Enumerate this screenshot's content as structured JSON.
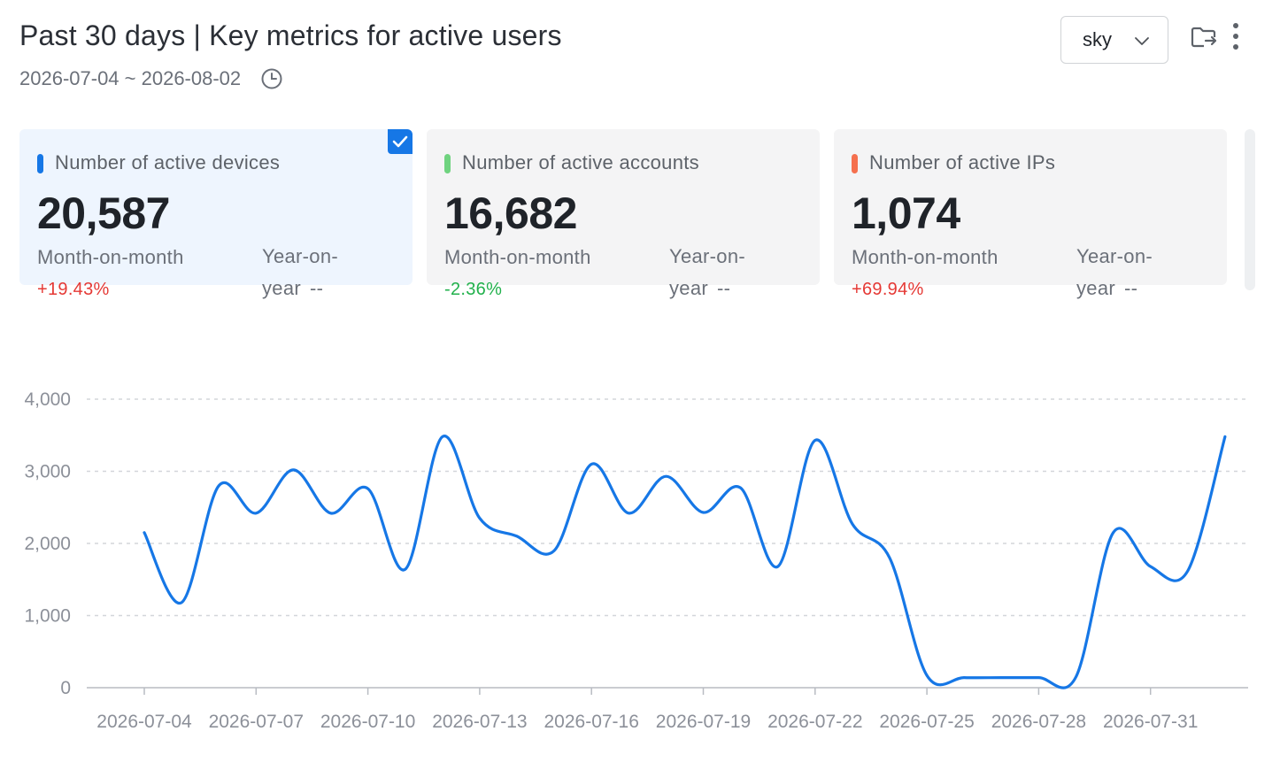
{
  "header": {
    "title": "Past 30 days | Key metrics for active users",
    "date_range": "2026-07-04 ~ 2026-08-02",
    "select_value": "sky"
  },
  "cards": [
    {
      "label": "Number of active devices",
      "value": "20,587",
      "mom_label": "Month-on-month",
      "mom_value": "+19.43%",
      "yoy_label": "Year-on-year",
      "yoy_value": "--",
      "marker_color": "#1677e6",
      "mom_color": "#e53935",
      "selected": true
    },
    {
      "label": "Number of active accounts",
      "value": "16,682",
      "mom_label": "Month-on-month",
      "mom_value": "-2.36%",
      "yoy_label": "Year-on-year",
      "yoy_value": "--",
      "marker_color": "#6fd37f",
      "mom_color": "#22b14c",
      "selected": false
    },
    {
      "label": "Number of active IPs",
      "value": "1,074",
      "mom_label": "Month-on-month",
      "mom_value": "+69.94%",
      "yoy_label": "Year-on-year",
      "yoy_value": "--",
      "marker_color": "#f5704e",
      "mom_color": "#e53935",
      "selected": false
    }
  ],
  "chart_data": {
    "type": "line",
    "title": "",
    "xlabel": "",
    "ylabel": "",
    "ylim": [
      0,
      4000
    ],
    "yticks": [
      0,
      1000,
      2000,
      3000,
      4000
    ],
    "ytick_labels": [
      "0",
      "1,000",
      "2,000",
      "3,000",
      "4,000"
    ],
    "x_tick_labels": [
      "2026-07-04",
      "2026-07-07",
      "2026-07-10",
      "2026-07-13",
      "2026-07-16",
      "2026-07-19",
      "2026-07-22",
      "2026-07-25",
      "2026-07-28",
      "2026-07-31"
    ],
    "grid": true,
    "series": [
      {
        "color": "#1677e6",
        "x": [
          "2026-07-04",
          "2026-07-05",
          "2026-07-06",
          "2026-07-07",
          "2026-07-08",
          "2026-07-09",
          "2026-07-10",
          "2026-07-11",
          "2026-07-12",
          "2026-07-13",
          "2026-07-14",
          "2026-07-15",
          "2026-07-16",
          "2026-07-17",
          "2026-07-18",
          "2026-07-19",
          "2026-07-20",
          "2026-07-21",
          "2026-07-22",
          "2026-07-23",
          "2026-07-24",
          "2026-07-25",
          "2026-07-26",
          "2026-07-27",
          "2026-07-28",
          "2026-07-29",
          "2026-07-30",
          "2026-07-31",
          "2026-08-01",
          "2026-08-02"
        ],
        "values": [
          2150,
          1180,
          2800,
          2420,
          3020,
          2420,
          2760,
          1640,
          3480,
          2350,
          2100,
          1900,
          3100,
          2420,
          2930,
          2430,
          2770,
          1680,
          3430,
          2270,
          1800,
          170,
          140,
          140,
          140,
          150,
          2150,
          1680,
          1620,
          3480
        ]
      }
    ]
  }
}
